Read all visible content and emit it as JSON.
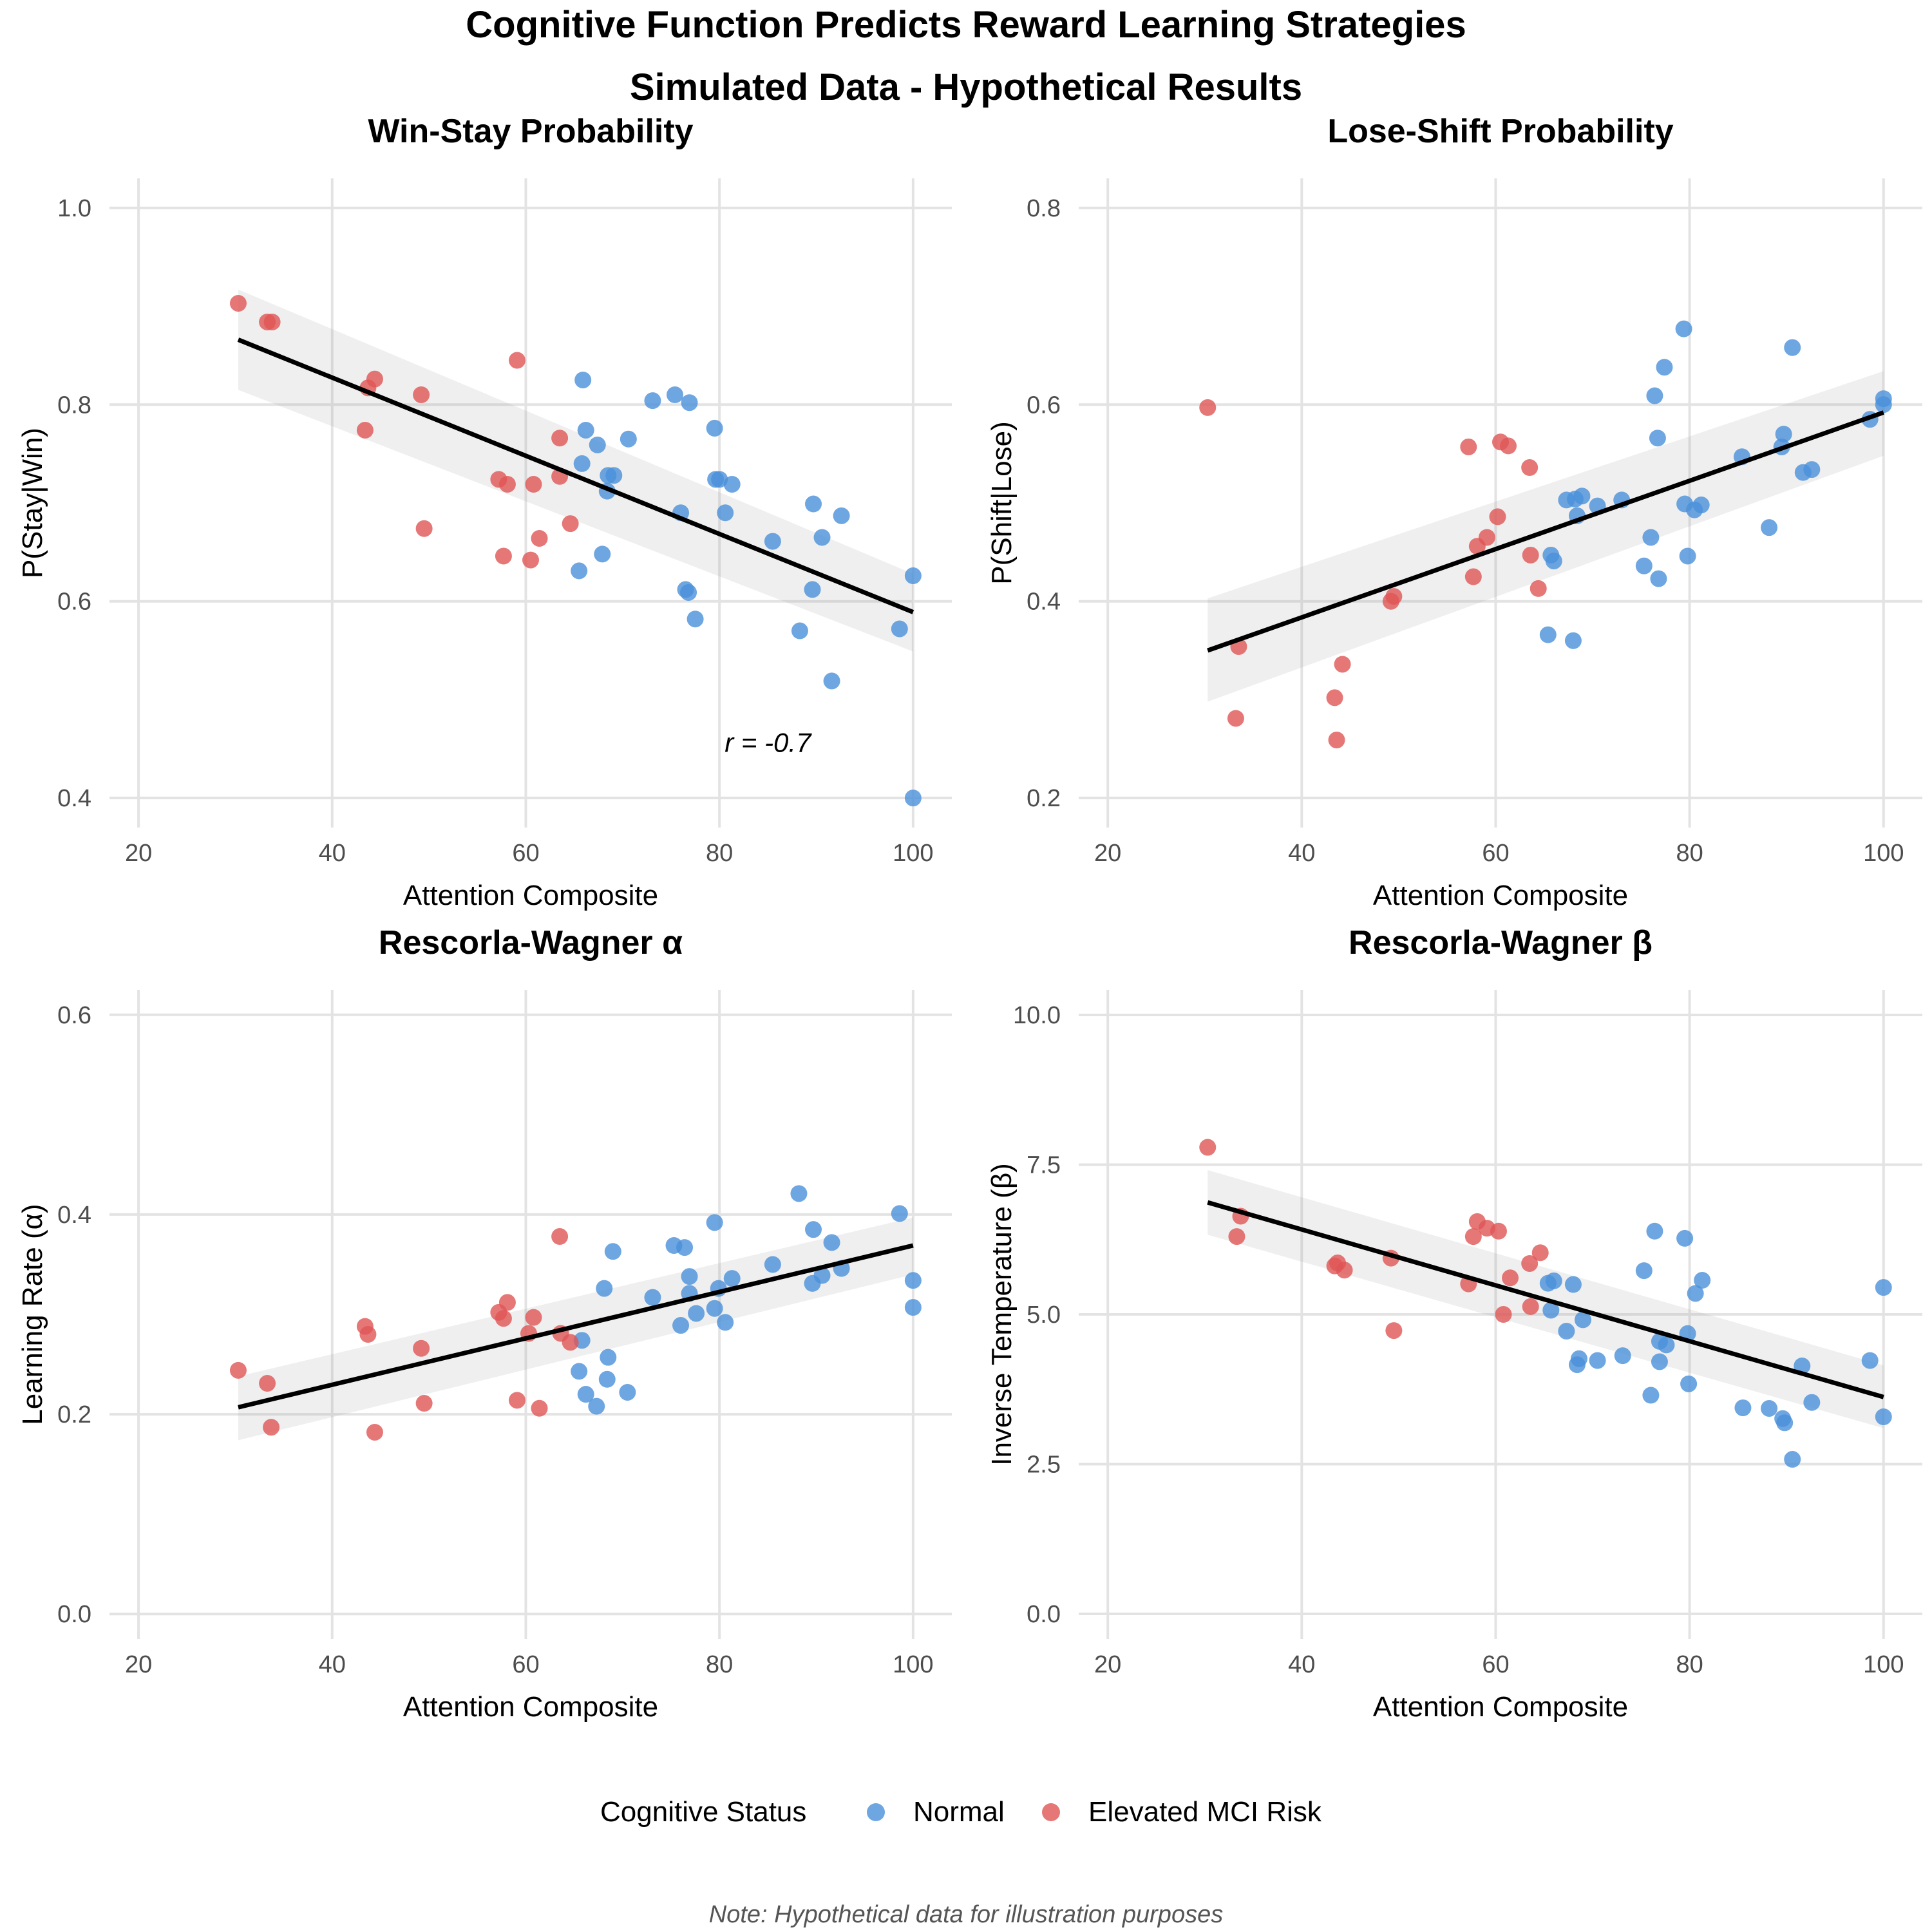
{
  "figure": {
    "title": "Cognitive Function Predicts Reward Learning Strategies",
    "subtitle": "Simulated Data - Hypothetical Results",
    "note": "Note: Hypothetical data for illustration purposes",
    "legend": {
      "title": "Cognitive Status",
      "position": "bottom",
      "items": [
        {
          "label": "Normal",
          "color": "#4a90d9"
        },
        {
          "label": "Elevated MCI Risk",
          "color": "#e05555"
        }
      ]
    }
  },
  "chart_data": [
    {
      "type": "scatter",
      "title": "Win-Stay Probability",
      "xlabel": "Attention Composite",
      "ylabel": "P(Stay|Win)",
      "xlim": [
        17,
        104
      ],
      "ylim": [
        0.37,
        1.03
      ],
      "xticks": [
        20,
        40,
        60,
        80,
        100
      ],
      "yticks": [
        0.4,
        0.6,
        0.8,
        1.0
      ],
      "ytick_labels": [
        "0.4",
        "0.6",
        "0.8",
        "1.0"
      ],
      "grid": true,
      "annotation": {
        "text": "r = -0.7",
        "x": 85,
        "y": 0.447
      },
      "fit": {
        "x": [
          30.3,
          100
        ],
        "y": [
          0.866,
          0.589
        ],
        "ci_start": [
          0.815,
          0.917
        ],
        "ci_end": [
          0.549,
          0.628
        ]
      },
      "series": [
        {
          "name": "Normal",
          "color": "#4a90d9",
          "points": [
            [
              65.9,
              0.825
            ],
            [
              66.2,
              0.774
            ],
            [
              65.8,
              0.74
            ],
            [
              65.5,
              0.631
            ],
            [
              67.4,
              0.759
            ],
            [
              67.9,
              0.648
            ],
            [
              68.4,
              0.712
            ],
            [
              68.5,
              0.728
            ],
            [
              69.1,
              0.728
            ],
            [
              70.6,
              0.765
            ],
            [
              73.1,
              0.804
            ],
            [
              75.4,
              0.81
            ],
            [
              76.0,
              0.69
            ],
            [
              76.5,
              0.612
            ],
            [
              76.8,
              0.609
            ],
            [
              76.9,
              0.802
            ],
            [
              77.5,
              0.582
            ],
            [
              79.5,
              0.776
            ],
            [
              79.6,
              0.724
            ],
            [
              80.0,
              0.724
            ],
            [
              80.6,
              0.69
            ],
            [
              81.3,
              0.719
            ],
            [
              85.5,
              0.661
            ],
            [
              88.3,
              0.57
            ],
            [
              89.6,
              0.612
            ],
            [
              89.7,
              0.699
            ],
            [
              90.6,
              0.665
            ],
            [
              91.6,
              0.519
            ],
            [
              92.6,
              0.687
            ],
            [
              98.6,
              0.572
            ],
            [
              100,
              0.626
            ],
            [
              100,
              0.4
            ]
          ]
        },
        {
          "name": "Elevated MCI Risk",
          "color": "#e05555",
          "points": [
            [
              30.3,
              0.903
            ],
            [
              33.3,
              0.884
            ],
            [
              33.8,
              0.884
            ],
            [
              43.4,
              0.774
            ],
            [
              43.7,
              0.817
            ],
            [
              44.4,
              0.826
            ],
            [
              49.2,
              0.81
            ],
            [
              49.5,
              0.674
            ],
            [
              57.2,
              0.724
            ],
            [
              57.7,
              0.646
            ],
            [
              58.1,
              0.719
            ],
            [
              59.1,
              0.845
            ],
            [
              60.5,
              0.642
            ],
            [
              60.8,
              0.719
            ],
            [
              61.4,
              0.664
            ],
            [
              63.5,
              0.766
            ],
            [
              63.5,
              0.727
            ],
            [
              64.6,
              0.679
            ]
          ]
        }
      ]
    },
    {
      "type": "scatter",
      "title": "Lose-Shift Probability",
      "xlabel": "Attention Composite",
      "ylabel": "P(Shift|Lose)",
      "xlim": [
        17,
        104
      ],
      "ylim": [
        0.17,
        0.83
      ],
      "xticks": [
        20,
        40,
        60,
        80,
        100
      ],
      "yticks": [
        0.2,
        0.4,
        0.6,
        0.8
      ],
      "ytick_labels": [
        "0.2",
        "0.4",
        "0.6",
        "0.8"
      ],
      "grid": true,
      "fit": {
        "x": [
          30.3,
          100
        ],
        "y": [
          0.35,
          0.592
        ],
        "ci_start": [
          0.298,
          0.403
        ],
        "ci_end": [
          0.548,
          0.634
        ]
      },
      "series": [
        {
          "name": "Normal",
          "color": "#4a90d9",
          "points": [
            [
              65.4,
              0.366
            ],
            [
              65.7,
              0.447
            ],
            [
              66.0,
              0.441
            ],
            [
              67.3,
              0.503
            ],
            [
              68.0,
              0.36
            ],
            [
              68.2,
              0.504
            ],
            [
              68.4,
              0.487
            ],
            [
              68.9,
              0.507
            ],
            [
              70.5,
              0.497
            ],
            [
              73.0,
              0.503
            ],
            [
              75.3,
              0.436
            ],
            [
              76.0,
              0.465
            ],
            [
              76.4,
              0.609
            ],
            [
              76.7,
              0.566
            ],
            [
              76.8,
              0.423
            ],
            [
              77.4,
              0.638
            ],
            [
              79.4,
              0.677
            ],
            [
              79.5,
              0.499
            ],
            [
              79.8,
              0.446
            ],
            [
              80.5,
              0.493
            ],
            [
              81.2,
              0.498
            ],
            [
              85.4,
              0.547
            ],
            [
              88.2,
              0.475
            ],
            [
              89.5,
              0.557
            ],
            [
              89.7,
              0.57
            ],
            [
              90.6,
              0.658
            ],
            [
              91.7,
              0.531
            ],
            [
              92.6,
              0.534
            ],
            [
              98.6,
              0.585
            ],
            [
              100,
              0.606
            ],
            [
              100,
              0.6
            ]
          ]
        },
        {
          "name": "Elevated MCI Risk",
          "color": "#e05555",
          "points": [
            [
              30.3,
              0.597
            ],
            [
              33.2,
              0.281
            ],
            [
              33.5,
              0.354
            ],
            [
              43.4,
              0.302
            ],
            [
              43.6,
              0.259
            ],
            [
              44.2,
              0.336
            ],
            [
              49.2,
              0.4
            ],
            [
              49.5,
              0.405
            ],
            [
              57.2,
              0.557
            ],
            [
              57.7,
              0.425
            ],
            [
              58.1,
              0.456
            ],
            [
              59.1,
              0.465
            ],
            [
              60.2,
              0.486
            ],
            [
              60.5,
              0.562
            ],
            [
              61.3,
              0.558
            ],
            [
              63.5,
              0.536
            ],
            [
              63.6,
              0.447
            ],
            [
              64.4,
              0.413
            ]
          ]
        }
      ]
    },
    {
      "type": "scatter",
      "title": "Rescorla-Wagner α",
      "xlabel": "Attention Composite",
      "ylabel": "Learning Rate (α)",
      "xlim": [
        17,
        104
      ],
      "ylim": [
        -0.025,
        0.625
      ],
      "xticks": [
        20,
        40,
        60,
        80,
        100
      ],
      "yticks": [
        0.0,
        0.2,
        0.4,
        0.6
      ],
      "ytick_labels": [
        "0.0",
        "0.2",
        "0.4",
        "0.6"
      ],
      "grid": true,
      "fit": {
        "x": [
          30.3,
          100
        ],
        "y": [
          0.207,
          0.369
        ],
        "ci_start": [
          0.174,
          0.238
        ],
        "ci_end": [
          0.34,
          0.397
        ]
      },
      "series": [
        {
          "name": "Normal",
          "color": "#4a90d9",
          "points": [
            [
              65.5,
              0.243
            ],
            [
              65.8,
              0.274
            ],
            [
              66.2,
              0.22
            ],
            [
              67.3,
              0.208
            ],
            [
              68.1,
              0.326
            ],
            [
              68.4,
              0.235
            ],
            [
              68.5,
              0.257
            ],
            [
              69.0,
              0.363
            ],
            [
              70.5,
              0.222
            ],
            [
              73.1,
              0.317
            ],
            [
              75.3,
              0.369
            ],
            [
              76.0,
              0.289
            ],
            [
              76.4,
              0.367
            ],
            [
              76.9,
              0.321
            ],
            [
              76.9,
              0.338
            ],
            [
              77.6,
              0.301
            ],
            [
              79.5,
              0.392
            ],
            [
              79.5,
              0.306
            ],
            [
              79.9,
              0.326
            ],
            [
              80.6,
              0.292
            ],
            [
              81.3,
              0.336
            ],
            [
              85.5,
              0.35
            ],
            [
              88.2,
              0.421
            ],
            [
              89.6,
              0.331
            ],
            [
              89.7,
              0.385
            ],
            [
              90.6,
              0.339
            ],
            [
              91.6,
              0.372
            ],
            [
              92.6,
              0.346
            ],
            [
              98.6,
              0.401
            ],
            [
              100,
              0.334
            ],
            [
              100,
              0.307
            ]
          ]
        },
        {
          "name": "Elevated MCI Risk",
          "color": "#e05555",
          "points": [
            [
              30.3,
              0.244
            ],
            [
              33.3,
              0.231
            ],
            [
              33.7,
              0.187
            ],
            [
              43.4,
              0.288
            ],
            [
              43.7,
              0.28
            ],
            [
              44.4,
              0.182
            ],
            [
              49.2,
              0.266
            ],
            [
              49.5,
              0.211
            ],
            [
              57.2,
              0.302
            ],
            [
              57.7,
              0.296
            ],
            [
              58.1,
              0.312
            ],
            [
              59.1,
              0.214
            ],
            [
              60.3,
              0.281
            ],
            [
              60.8,
              0.297
            ],
            [
              61.4,
              0.206
            ],
            [
              63.5,
              0.378
            ],
            [
              63.6,
              0.281
            ],
            [
              64.6,
              0.272
            ]
          ]
        }
      ]
    },
    {
      "type": "scatter",
      "title": "Rescorla-Wagner β",
      "xlabel": "Attention Composite",
      "ylabel": "Inverse Temperature (β)",
      "xlim": [
        17,
        104
      ],
      "ylim": [
        -0.42,
        10.42
      ],
      "xticks": [
        20,
        40,
        60,
        80,
        100
      ],
      "yticks": [
        0.0,
        2.5,
        5.0,
        7.5,
        10.0
      ],
      "ytick_labels": [
        "0.0",
        "2.5",
        "5.0",
        "7.5",
        "10.0"
      ],
      "grid": true,
      "fit": {
        "x": [
          30.3,
          100
        ],
        "y": [
          6.87,
          3.62
        ],
        "ci_start": [
          6.33,
          7.41
        ],
        "ci_end": [
          3.1,
          4.15
        ]
      },
      "series": [
        {
          "name": "Normal",
          "color": "#4a90d9",
          "points": [
            [
              65.4,
              5.52
            ],
            [
              65.7,
              5.07
            ],
            [
              66.0,
              5.56
            ],
            [
              67.3,
              4.72
            ],
            [
              68.0,
              5.5
            ],
            [
              68.4,
              4.16
            ],
            [
              68.6,
              4.26
            ],
            [
              69.0,
              4.91
            ],
            [
              70.5,
              4.23
            ],
            [
              73.1,
              4.31
            ],
            [
              75.3,
              5.73
            ],
            [
              76.0,
              3.65
            ],
            [
              76.4,
              6.39
            ],
            [
              76.9,
              4.55
            ],
            [
              76.9,
              4.21
            ],
            [
              77.6,
              4.49
            ],
            [
              79.5,
              6.27
            ],
            [
              79.8,
              4.68
            ],
            [
              79.9,
              3.84
            ],
            [
              80.6,
              5.35
            ],
            [
              81.3,
              5.57
            ],
            [
              85.5,
              3.44
            ],
            [
              88.2,
              3.43
            ],
            [
              89.6,
              3.26
            ],
            [
              89.8,
              3.19
            ],
            [
              90.6,
              2.58
            ],
            [
              91.6,
              4.14
            ],
            [
              92.6,
              3.53
            ],
            [
              98.6,
              4.23
            ],
            [
              100,
              5.45
            ],
            [
              100,
              3.29
            ]
          ]
        },
        {
          "name": "Elevated MCI Risk",
          "color": "#e05555",
          "points": [
            [
              30.3,
              7.79
            ],
            [
              33.3,
              6.3
            ],
            [
              33.7,
              6.64
            ],
            [
              43.4,
              5.81
            ],
            [
              43.7,
              5.86
            ],
            [
              44.4,
              5.74
            ],
            [
              49.2,
              5.94
            ],
            [
              49.5,
              4.73
            ],
            [
              57.2,
              5.51
            ],
            [
              57.7,
              6.3
            ],
            [
              58.1,
              6.55
            ],
            [
              59.1,
              6.44
            ],
            [
              60.3,
              6.39
            ],
            [
              60.8,
              5.0
            ],
            [
              61.5,
              5.61
            ],
            [
              63.5,
              5.85
            ],
            [
              63.6,
              5.13
            ],
            [
              64.6,
              6.03
            ]
          ]
        }
      ]
    }
  ]
}
